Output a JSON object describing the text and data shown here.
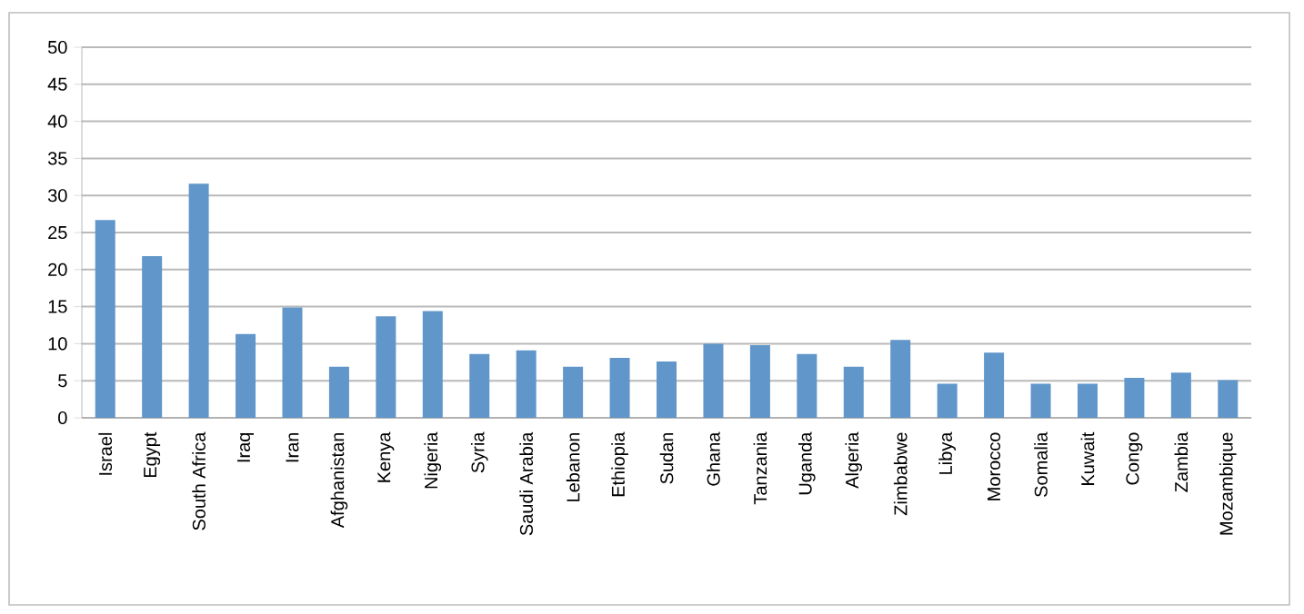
{
  "chart_data": {
    "type": "bar",
    "categories": [
      "Israel",
      "Egypt",
      "South Africa",
      "Iraq",
      "Iran",
      "Afghanistan",
      "Kenya",
      "Nigeria",
      "Syria",
      "Saudi Arabia",
      "Lebanon",
      "Ethiopia",
      "Sudan",
      "Ghana",
      "Tanzania",
      "Uganda",
      "Algeria",
      "Zimbabwe",
      "Libya",
      "Morocco",
      "Somalia",
      "Kuwait",
      "Congo",
      "Zambia",
      "Mozambique"
    ],
    "values": [
      26.7,
      21.8,
      31.6,
      11.3,
      14.9,
      6.9,
      13.7,
      14.4,
      8.6,
      9.1,
      6.9,
      8.1,
      7.6,
      10.0,
      9.8,
      8.6,
      6.9,
      10.5,
      4.6,
      8.8,
      4.6,
      4.6,
      5.4,
      6.1,
      5.1
    ],
    "color": "#6096c9",
    "ylim": [
      0,
      50
    ],
    "yticks": [
      0,
      5,
      10,
      15,
      20,
      25,
      30,
      35,
      40,
      45,
      50
    ],
    "grid": "y"
  }
}
